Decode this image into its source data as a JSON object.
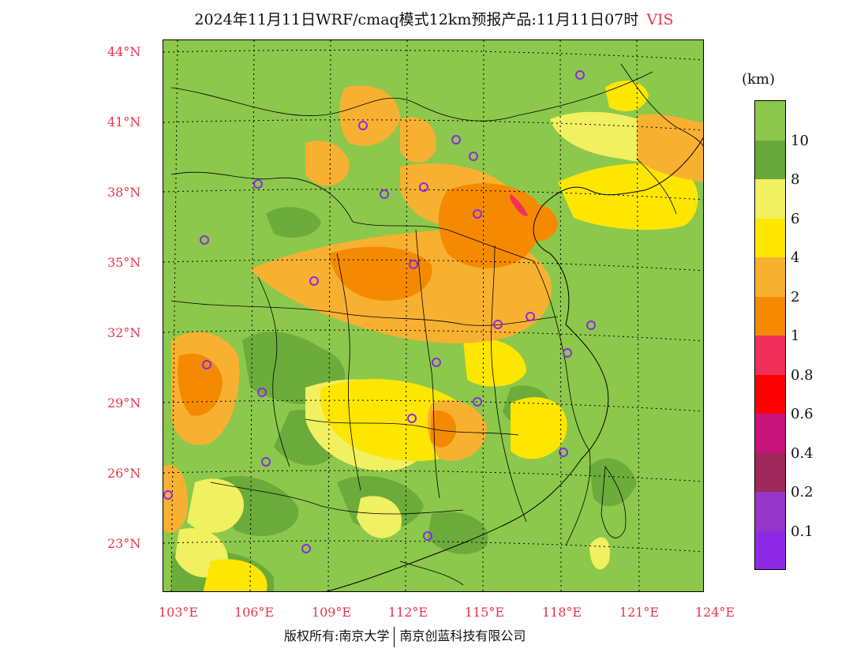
{
  "title": {
    "main": "2024年11月11日WRF/cmaq模式12km预报产品:11月11日07时",
    "variable": "VIS"
  },
  "axes": {
    "lat_labels": [
      "44°N",
      "41°N",
      "38°N",
      "35°N",
      "32°N",
      "29°N",
      "26°N",
      "23°N"
    ],
    "lon_labels": [
      "103°E",
      "106°E",
      "109°E",
      "112°E",
      "115°E",
      "118°E",
      "121°E",
      "124°E"
    ]
  },
  "colorbar": {
    "unit": "(km)",
    "levels": [
      "10",
      "8",
      "6",
      "4",
      "2",
      "1",
      "0.8",
      "0.6",
      "0.4",
      "0.2",
      "0.1"
    ],
    "colors": [
      "#8cc84b",
      "#68a83a",
      "#f0f060",
      "#ffe600",
      "#f8b030",
      "#f58a00",
      "#f0305a",
      "#ff0000",
      "#c8147a",
      "#a0285a",
      "#9636c8",
      "#8c28e6"
    ]
  },
  "map_colors": {
    "background": "#8cc84b",
    "dark_green": "#68a83a",
    "light_yellow": "#f0f060",
    "yellow": "#ffe600",
    "light_orange": "#f8b030",
    "orange": "#f58a00",
    "pink": "#f0305a",
    "marker": "#8a2be2"
  },
  "copyright": {
    "left": "版权所有:南京大学",
    "right": "南京创蓝科技有限公司"
  }
}
